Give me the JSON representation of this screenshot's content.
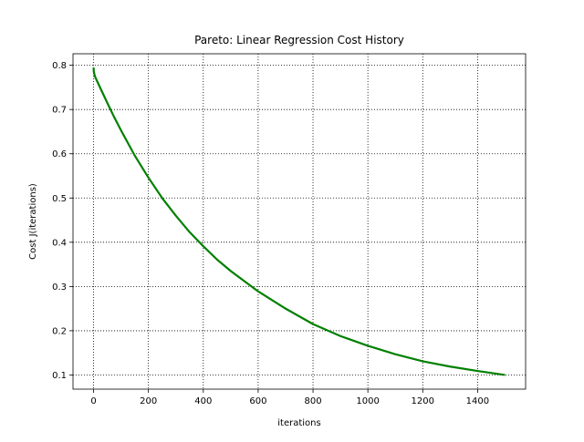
{
  "chart_data": {
    "type": "line",
    "title": "Pareto: Linear Regression Cost History",
    "xlabel": "iterations",
    "ylabel": "Cost J(iterations)",
    "xlim": [
      -75,
      1575
    ],
    "ylim": [
      0.068,
      0.826
    ],
    "xticks": [
      0,
      200,
      400,
      600,
      800,
      1000,
      1200,
      1400
    ],
    "yticks": [
      0.1,
      0.2,
      0.3,
      0.4,
      0.5,
      0.6,
      0.7,
      0.8
    ],
    "grid": true,
    "legend": "none",
    "series": [
      {
        "color": "#008000",
        "x": [
          0,
          1,
          5,
          10,
          25,
          50,
          75,
          100,
          150,
          200,
          250,
          300,
          350,
          400,
          450,
          500,
          600,
          700,
          800,
          900,
          1000,
          1100,
          1200,
          1300,
          1400,
          1500
        ],
        "y": [
          0.795,
          0.785,
          0.775,
          0.768,
          0.748,
          0.715,
          0.683,
          0.653,
          0.596,
          0.546,
          0.5,
          0.46,
          0.423,
          0.391,
          0.361,
          0.335,
          0.289,
          0.25,
          0.215,
          0.188,
          0.166,
          0.147,
          0.131,
          0.119,
          0.109,
          0.1
        ]
      }
    ]
  }
}
